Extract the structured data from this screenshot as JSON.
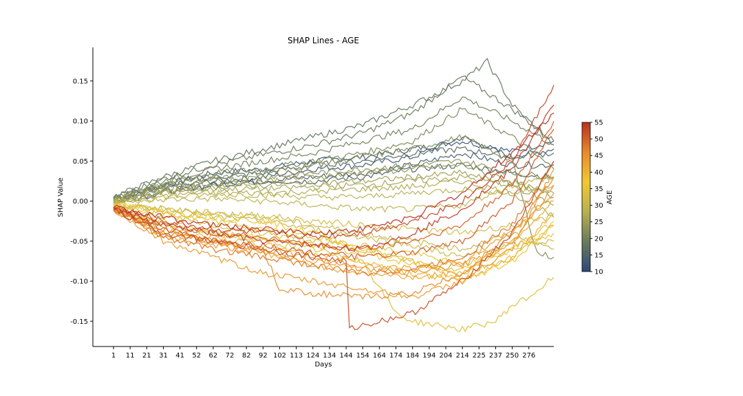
{
  "chart_data": {
    "type": "line",
    "title": "SHAP Lines - AGE",
    "xlabel": "Days",
    "ylabel": "SHAP Value",
    "x_tick_labels": [
      "1",
      "11",
      "21",
      "31",
      "41",
      "52",
      "62",
      "72",
      "82",
      "92",
      "102",
      "113",
      "124",
      "134",
      "144",
      "154",
      "164",
      "174",
      "184",
      "194",
      "204",
      "214",
      "225",
      "237",
      "250",
      "276"
    ],
    "y_ticks": [
      -0.15,
      -0.1,
      -0.05,
      0.0,
      0.05,
      0.1,
      0.15
    ],
    "y_tick_labels": [
      "-0.15",
      "-0.10",
      "-0.05",
      "0.00",
      "0.05",
      "0.10",
      "0.15"
    ],
    "ylim": [
      -0.18,
      0.19
    ],
    "x_range": [
      0,
      28
    ],
    "grid": false,
    "colorbar": {
      "label": "AGE",
      "min": 10,
      "max": 55,
      "ticks": [
        10,
        15,
        20,
        25,
        30,
        35,
        40,
        45,
        50,
        55
      ],
      "tick_labels": [
        "10",
        "15",
        "20",
        "25",
        "30",
        "35",
        "40",
        "45",
        "50",
        "55"
      ],
      "colors": [
        "#2b4a78",
        "#6b7a5c",
        "#b8b050",
        "#f2c832",
        "#e88a2a",
        "#b83020"
      ]
    },
    "series": [
      {
        "age": 12,
        "x": [
          0,
          3,
          6,
          9,
          12,
          15,
          18,
          21,
          24,
          26.5
        ],
        "y": [
          0.002,
          0.02,
          0.035,
          0.04,
          0.05,
          0.055,
          0.065,
          0.075,
          0.062,
          0.075
        ]
      },
      {
        "age": 13,
        "x": [
          0,
          3,
          6,
          9,
          12,
          15,
          18,
          21,
          24,
          26.5
        ],
        "y": [
          0,
          0.015,
          0.025,
          0.03,
          0.04,
          0.045,
          0.055,
          0.08,
          0.055,
          0.065
        ]
      },
      {
        "age": 14,
        "x": [
          0,
          3,
          6,
          9,
          12,
          15,
          18,
          21,
          24,
          26.5
        ],
        "y": [
          -0.002,
          0.012,
          0.02,
          0.025,
          0.03,
          0.035,
          0.045,
          0.06,
          0.045,
          0.045
        ]
      },
      {
        "age": 15,
        "x": [
          0,
          3,
          6,
          9,
          12,
          15,
          18,
          21,
          24,
          26.5
        ],
        "y": [
          0,
          0.01,
          0.02,
          0.025,
          0.025,
          0.03,
          0.04,
          0.045,
          0.035,
          0.03
        ]
      },
      {
        "age": 16,
        "x": [
          0,
          3,
          6,
          9,
          12,
          15,
          18,
          21,
          24,
          26.5
        ],
        "y": [
          0.003,
          0.02,
          0.03,
          0.035,
          0.045,
          0.05,
          0.06,
          0.065,
          0.055,
          0.06
        ]
      },
      {
        "age": 18,
        "x": [
          0,
          3,
          6,
          9,
          12,
          15,
          18,
          21,
          22.5,
          24,
          26.5
        ],
        "y": [
          0.005,
          0.03,
          0.05,
          0.065,
          0.08,
          0.095,
          0.12,
          0.15,
          0.174,
          0.12,
          0.07
        ]
      },
      {
        "age": 19,
        "x": [
          0,
          3,
          6,
          9,
          12,
          15,
          18,
          21,
          24,
          26.5
        ],
        "y": [
          0.004,
          0.028,
          0.045,
          0.058,
          0.07,
          0.085,
          0.11,
          0.155,
          0.115,
          0.075
        ]
      },
      {
        "age": 20,
        "x": [
          0,
          3,
          6,
          9,
          12,
          15,
          18,
          21,
          24,
          26.5
        ],
        "y": [
          0.004,
          0.025,
          0.04,
          0.05,
          0.06,
          0.075,
          0.09,
          0.13,
          0.1,
          0.07
        ]
      },
      {
        "age": 21,
        "x": [
          0,
          3,
          6,
          9,
          12,
          15,
          18,
          21,
          24,
          26.5
        ],
        "y": [
          0.003,
          0.022,
          0.035,
          0.04,
          0.05,
          0.06,
          0.075,
          0.115,
          0.08,
          0.04
        ]
      },
      {
        "age": 22,
        "x": [
          0,
          3,
          6,
          9,
          12,
          15,
          18,
          21,
          24,
          25.5,
          26.5
        ],
        "y": [
          0.003,
          0.02,
          0.03,
          0.035,
          0.045,
          0.055,
          0.065,
          0.08,
          0.05,
          -0.065,
          -0.07
        ]
      },
      {
        "age": 23,
        "x": [
          0,
          3,
          6,
          9,
          12,
          15,
          18,
          21,
          24,
          26.5
        ],
        "y": [
          0.002,
          0.018,
          0.025,
          0.03,
          0.035,
          0.04,
          0.045,
          0.05,
          0.035,
          0.03
        ]
      },
      {
        "age": 24,
        "x": [
          0,
          3,
          6,
          9,
          12,
          15,
          18,
          21,
          24,
          26.5
        ],
        "y": [
          0.002,
          0.015,
          0.02,
          0.025,
          0.03,
          0.035,
          0.04,
          0.045,
          0.025,
          0.005
        ]
      },
      {
        "age": 25,
        "x": [
          0,
          3,
          6,
          9,
          12,
          15,
          18,
          21,
          24,
          26.5
        ],
        "y": [
          0.001,
          0.012,
          0.018,
          0.02,
          0.022,
          0.025,
          0.03,
          0.035,
          0.02,
          -0.005
        ]
      },
      {
        "age": 26,
        "x": [
          0,
          3,
          6,
          9,
          12,
          15,
          18,
          21,
          24,
          26.5
        ],
        "y": [
          0,
          0.01,
          0.015,
          0.015,
          0.018,
          0.02,
          0.025,
          0.03,
          0.02,
          0.01
        ]
      },
      {
        "age": 27,
        "x": [
          0,
          3,
          6,
          9,
          12,
          15,
          18,
          21,
          24,
          26.5
        ],
        "y": [
          0,
          0.008,
          0.01,
          0.01,
          0.012,
          0.015,
          0.018,
          0.025,
          0.01,
          -0.02
        ]
      },
      {
        "age": 28,
        "x": [
          0,
          3,
          6,
          9,
          12,
          15,
          18,
          21,
          24,
          26.5
        ],
        "y": [
          -0.002,
          0.005,
          0.008,
          0.008,
          0.005,
          0.005,
          0.01,
          0.015,
          0.01,
          0.02
        ]
      },
      {
        "age": 29,
        "x": [
          0,
          3,
          6,
          9,
          12,
          15,
          18,
          21,
          24,
          26.5
        ],
        "y": [
          -0.002,
          0.002,
          0.003,
          0,
          -0.005,
          -0.01,
          -0.01,
          -0.005,
          0.02,
          0.03
        ]
      },
      {
        "age": 30,
        "x": [
          0,
          3,
          6,
          9,
          12,
          15,
          18,
          21,
          24,
          26.5
        ],
        "y": [
          -0.005,
          -0.01,
          -0.015,
          -0.02,
          -0.03,
          -0.04,
          -0.05,
          -0.06,
          -0.04,
          -0.06
        ]
      },
      {
        "age": 31,
        "x": [
          0,
          3,
          6,
          9,
          12,
          15,
          18,
          21,
          24,
          26.5
        ],
        "y": [
          -0.005,
          -0.012,
          -0.02,
          -0.025,
          -0.035,
          -0.045,
          -0.055,
          -0.07,
          -0.055,
          -0.05
        ]
      },
      {
        "age": 32,
        "x": [
          0,
          3,
          6,
          9,
          12,
          15,
          18,
          21,
          24,
          26.5
        ],
        "y": [
          -0.003,
          -0.01,
          -0.015,
          -0.018,
          -0.025,
          -0.03,
          -0.035,
          -0.04,
          -0.03,
          -0.02
        ]
      },
      {
        "age": 33,
        "x": [
          0,
          3,
          6,
          9,
          12,
          15,
          18,
          21,
          24,
          26.5
        ],
        "y": [
          -0.006,
          -0.02,
          -0.03,
          -0.04,
          -0.05,
          -0.06,
          -0.075,
          -0.09,
          -0.07,
          -0.03
        ]
      },
      {
        "age": 34,
        "x": [
          0,
          3,
          6,
          9,
          12,
          15,
          17,
          18,
          21,
          23,
          24,
          25,
          26.5
        ],
        "y": [
          -0.008,
          -0.025,
          -0.04,
          -0.05,
          -0.06,
          -0.075,
          -0.14,
          -0.15,
          -0.16,
          -0.15,
          -0.13,
          -0.12,
          -0.095
        ]
      },
      {
        "age": 35,
        "x": [
          0,
          3,
          6,
          9,
          12,
          15,
          18,
          21,
          24,
          26.5
        ],
        "y": [
          -0.005,
          -0.015,
          -0.025,
          -0.035,
          -0.045,
          -0.055,
          -0.065,
          -0.08,
          -0.06,
          -0.04
        ]
      },
      {
        "age": 36,
        "x": [
          0,
          3,
          6,
          9,
          12,
          15,
          18,
          21,
          24,
          26.5
        ],
        "y": [
          -0.004,
          -0.012,
          -0.02,
          -0.025,
          -0.04,
          -0.06,
          -0.075,
          -0.1,
          -0.075,
          -0.03
        ]
      },
      {
        "age": 38,
        "x": [
          0,
          3,
          6,
          9,
          12,
          15,
          18,
          21,
          24,
          26.5
        ],
        "y": [
          -0.008,
          -0.03,
          -0.04,
          -0.045,
          -0.055,
          -0.065,
          -0.08,
          -0.085,
          -0.06,
          -0.025
        ]
      },
      {
        "age": 40,
        "x": [
          0,
          3,
          6,
          9,
          12,
          15,
          18,
          21,
          24,
          26.5
        ],
        "y": [
          -0.01,
          -0.035,
          -0.045,
          -0.055,
          -0.065,
          -0.075,
          -0.09,
          -0.1,
          -0.07,
          -0.015
        ]
      },
      {
        "age": 42,
        "x": [
          0,
          3,
          6,
          9,
          12,
          15,
          18,
          21,
          24,
          26.5
        ],
        "y": [
          -0.008,
          -0.04,
          -0.05,
          -0.065,
          -0.08,
          -0.09,
          -0.095,
          -0.09,
          -0.05,
          0
        ]
      },
      {
        "age": 43,
        "x": [
          0,
          3,
          6,
          9,
          12,
          15,
          18,
          21,
          24,
          26.5
        ],
        "y": [
          -0.01,
          -0.045,
          -0.055,
          -0.065,
          -0.075,
          -0.08,
          -0.085,
          -0.075,
          -0.04,
          0.01
        ]
      },
      {
        "age": 44,
        "x": [
          0,
          3,
          6,
          9,
          12,
          15,
          18,
          21,
          24,
          26.5
        ],
        "y": [
          -0.012,
          -0.05,
          -0.07,
          -0.09,
          -0.1,
          -0.11,
          -0.12,
          -0.1,
          -0.06,
          0.04
        ]
      },
      {
        "age": 45,
        "x": [
          0,
          3,
          6,
          9,
          12,
          15,
          18,
          21,
          24,
          26.5
        ],
        "y": [
          -0.01,
          -0.035,
          -0.05,
          -0.06,
          -0.07,
          -0.085,
          -0.09,
          -0.08,
          -0.05,
          0.02
        ]
      },
      {
        "age": 46,
        "x": [
          0,
          3,
          6,
          9,
          10,
          12,
          15,
          18,
          21,
          24,
          26.5
        ],
        "y": [
          -0.01,
          -0.04,
          -0.05,
          -0.06,
          -0.11,
          -0.115,
          -0.12,
          -0.115,
          -0.09,
          -0.04,
          0.03
        ]
      },
      {
        "age": 48,
        "x": [
          0,
          3,
          6,
          9,
          12,
          15,
          18,
          21,
          24,
          26.5
        ],
        "y": [
          -0.01,
          -0.045,
          -0.06,
          -0.07,
          -0.08,
          -0.09,
          -0.085,
          -0.07,
          -0.03,
          0.05
        ]
      },
      {
        "age": 50,
        "x": [
          0,
          3,
          6,
          9,
          12,
          15,
          18,
          21,
          24,
          26.5
        ],
        "y": [
          -0.008,
          -0.03,
          -0.04,
          -0.045,
          -0.055,
          -0.06,
          -0.05,
          -0.03,
          0.02,
          0.1
        ]
      },
      {
        "age": 51,
        "x": [
          0,
          3,
          6,
          9,
          12,
          15,
          18,
          21,
          24,
          26.5
        ],
        "y": [
          -0.01,
          -0.035,
          -0.05,
          -0.055,
          -0.065,
          -0.07,
          -0.065,
          -0.05,
          0,
          0.09
        ]
      },
      {
        "age": 52,
        "x": [
          0,
          3,
          6,
          9,
          12,
          14,
          14.2,
          15,
          18,
          21,
          24,
          26.5
        ],
        "y": [
          -0.012,
          -0.04,
          -0.05,
          -0.06,
          -0.07,
          -0.075,
          -0.16,
          -0.155,
          -0.14,
          -0.1,
          -0.04,
          0.05
        ]
      },
      {
        "age": 53,
        "x": [
          0,
          3,
          6,
          9,
          12,
          15,
          18,
          21,
          24,
          26.5
        ],
        "y": [
          -0.008,
          -0.025,
          -0.035,
          -0.04,
          -0.045,
          -0.04,
          -0.025,
          0,
          0.05,
          0.145
        ]
      },
      {
        "age": 54,
        "x": [
          0,
          3,
          6,
          9,
          12,
          15,
          18,
          21,
          24,
          26.5
        ],
        "y": [
          -0.01,
          -0.03,
          -0.04,
          -0.05,
          -0.055,
          -0.06,
          -0.04,
          -0.01,
          0.04,
          0.12
        ]
      },
      {
        "age": 55,
        "x": [
          0,
          3,
          6,
          9,
          12,
          15,
          18,
          21,
          24,
          26.5
        ],
        "y": [
          -0.008,
          -0.02,
          -0.03,
          -0.035,
          -0.04,
          -0.035,
          -0.02,
          0.01,
          0.06,
          0.11
        ]
      }
    ]
  }
}
